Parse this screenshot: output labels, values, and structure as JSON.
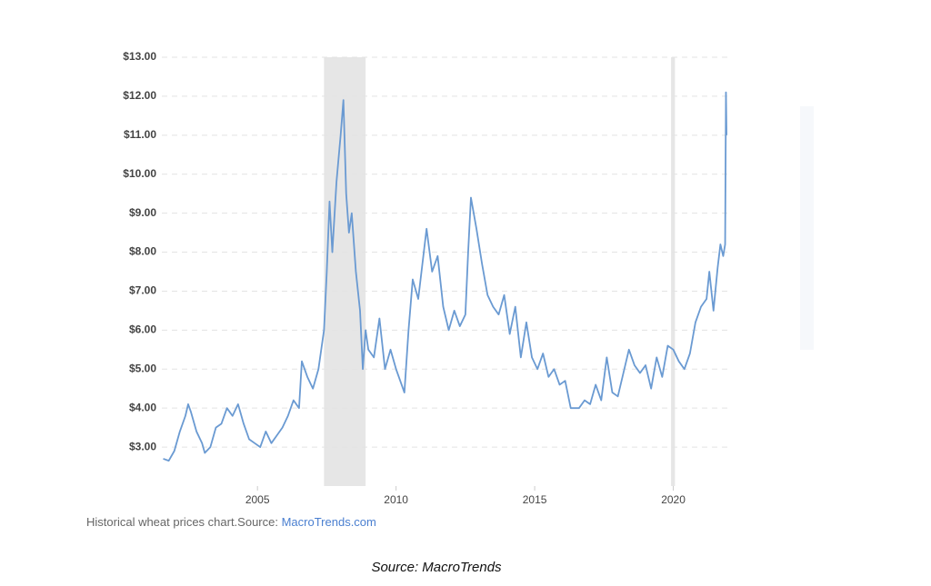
{
  "chart_data": {
    "type": "line",
    "caption": "Historical wheat prices chart.Source: ",
    "caption_link": "MacroTrends.com",
    "source_note": "Source: MacroTrends",
    "shaded_x_ranges": [
      [
        2007.4,
        2008.9
      ],
      [
        2019.92,
        2020.06
      ]
    ],
    "xlim": [
      2001.55,
      2021.95
    ],
    "xticks": [
      2005,
      2010,
      2015,
      2020
    ],
    "ylim": [
      2,
      13
    ],
    "yticks": [
      {
        "value": 3,
        "label": "$3.00"
      },
      {
        "value": 4,
        "label": "$4.00"
      },
      {
        "value": 5,
        "label": "$5.00"
      },
      {
        "value": 6,
        "label": "$6.00"
      },
      {
        "value": 7,
        "label": "$7.00"
      },
      {
        "value": 8,
        "label": "$8.00"
      },
      {
        "value": 9,
        "label": "$9.00"
      },
      {
        "value": 10,
        "label": "$10.00"
      },
      {
        "value": 11,
        "label": "$11.00"
      },
      {
        "value": 12,
        "label": "$12.00"
      },
      {
        "value": 13,
        "label": "$13.00"
      }
    ],
    "grid": true,
    "color": "#6a9ad2",
    "x": [
      2001.6,
      2001.8,
      2002.0,
      2002.2,
      2002.4,
      2002.5,
      2002.6,
      2002.8,
      2003.0,
      2003.1,
      2003.3,
      2003.5,
      2003.7,
      2003.9,
      2004.1,
      2004.3,
      2004.5,
      2004.7,
      2004.9,
      2005.1,
      2005.3,
      2005.5,
      2005.7,
      2005.9,
      2006.1,
      2006.3,
      2006.5,
      2006.6,
      2006.8,
      2007.0,
      2007.2,
      2007.4,
      2007.5,
      2007.6,
      2007.7,
      2007.85,
      2008.0,
      2008.1,
      2008.2,
      2008.3,
      2008.4,
      2008.55,
      2008.7,
      2008.8,
      2008.9,
      2009.0,
      2009.2,
      2009.4,
      2009.6,
      2009.8,
      2010.0,
      2010.2,
      2010.3,
      2010.45,
      2010.6,
      2010.8,
      2011.0,
      2011.1,
      2011.3,
      2011.5,
      2011.7,
      2011.9,
      2012.1,
      2012.3,
      2012.5,
      2012.6,
      2012.7,
      2012.9,
      2013.1,
      2013.3,
      2013.5,
      2013.7,
      2013.9,
      2014.1,
      2014.3,
      2014.5,
      2014.7,
      2014.9,
      2015.1,
      2015.3,
      2015.5,
      2015.7,
      2015.9,
      2016.1,
      2016.3,
      2016.6,
      2016.8,
      2017.0,
      2017.2,
      2017.4,
      2017.6,
      2017.8,
      2018.0,
      2018.2,
      2018.4,
      2018.6,
      2018.8,
      2019.0,
      2019.2,
      2019.4,
      2019.6,
      2019.8,
      2020.0,
      2020.2,
      2020.4,
      2020.6,
      2020.8,
      2021.0,
      2021.2,
      2021.3,
      2021.45,
      2021.6,
      2021.7,
      2021.8,
      2021.87,
      2021.9,
      2021.92
    ],
    "values": [
      2.7,
      2.65,
      2.9,
      3.4,
      3.8,
      4.1,
      3.9,
      3.4,
      3.1,
      2.85,
      3.0,
      3.5,
      3.6,
      4.0,
      3.8,
      4.1,
      3.6,
      3.2,
      3.1,
      3.0,
      3.4,
      3.1,
      3.3,
      3.5,
      3.8,
      4.2,
      4.0,
      5.2,
      4.8,
      4.5,
      5.0,
      6.0,
      7.5,
      9.3,
      8.0,
      9.8,
      11.0,
      11.9,
      9.5,
      8.5,
      9.0,
      7.5,
      6.5,
      5.0,
      6.0,
      5.5,
      5.3,
      6.3,
      5.0,
      5.5,
      5.0,
      4.6,
      4.4,
      6.0,
      7.3,
      6.8,
      8.0,
      8.6,
      7.5,
      7.9,
      6.6,
      6.0,
      6.5,
      6.1,
      6.4,
      8.0,
      9.4,
      8.6,
      7.7,
      6.9,
      6.6,
      6.4,
      6.9,
      5.9,
      6.6,
      5.3,
      6.2,
      5.3,
      5.0,
      5.4,
      4.8,
      5.0,
      4.6,
      4.7,
      4.0,
      4.0,
      4.2,
      4.1,
      4.6,
      4.2,
      5.3,
      4.4,
      4.3,
      4.9,
      5.5,
      5.1,
      4.9,
      5.1,
      4.5,
      5.3,
      4.8,
      5.6,
      5.5,
      5.2,
      5.0,
      5.4,
      6.2,
      6.6,
      6.8,
      7.5,
      6.5,
      7.6,
      8.2,
      7.9,
      8.2,
      12.1,
      11.0
    ]
  }
}
